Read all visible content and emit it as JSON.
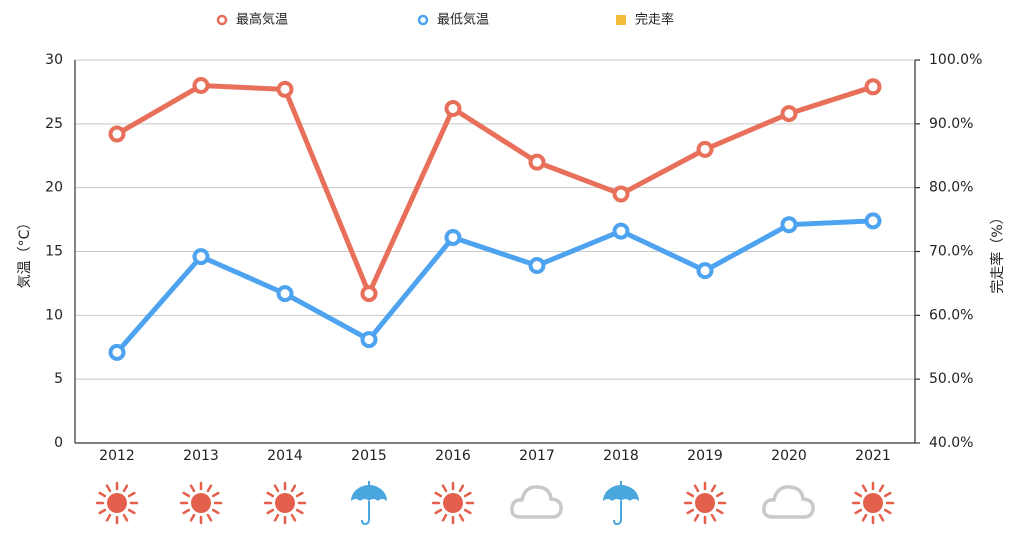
{
  "chart_data": {
    "type": "line",
    "categories": [
      "2012",
      "2013",
      "2014",
      "2015",
      "2016",
      "2017",
      "2018",
      "2019",
      "2020",
      "2021"
    ],
    "series": [
      {
        "name": "最高気温",
        "color": "#e8705a",
        "values": [
          24.2,
          28.0,
          27.7,
          11.7,
          26.2,
          22.0,
          19.5,
          23.0,
          25.8,
          27.9
        ]
      },
      {
        "name": "最低気温",
        "color": "#4da3f0",
        "values": [
          7.1,
          14.6,
          11.7,
          8.1,
          16.1,
          13.9,
          16.6,
          13.5,
          17.1,
          17.4
        ]
      },
      {
        "name": "完走率",
        "color": "#f2bb3c",
        "type": "bar",
        "axis": "y2",
        "values": [
          null,
          null,
          null,
          null,
          null,
          null,
          null,
          null,
          null,
          null
        ]
      }
    ],
    "ylabel": "気温（°C）",
    "y2label": "完走率（%）",
    "ylim": [
      0,
      30
    ],
    "yticks": [
      0,
      5,
      10,
      15,
      20,
      25,
      30
    ],
    "y2lim": [
      40,
      100
    ],
    "y2ticks": [
      {
        "value": 40,
        "label": "40.0%"
      },
      {
        "value": 50,
        "label": "50.0%"
      },
      {
        "value": 60,
        "label": "60.0%"
      },
      {
        "value": 70,
        "label": "70.0%"
      },
      {
        "value": 80,
        "label": "80.0%"
      },
      {
        "value": 90,
        "label": "90.0%"
      },
      {
        "value": 100,
        "label": "100.0%"
      }
    ],
    "grid": true,
    "legend": "top"
  }
}
